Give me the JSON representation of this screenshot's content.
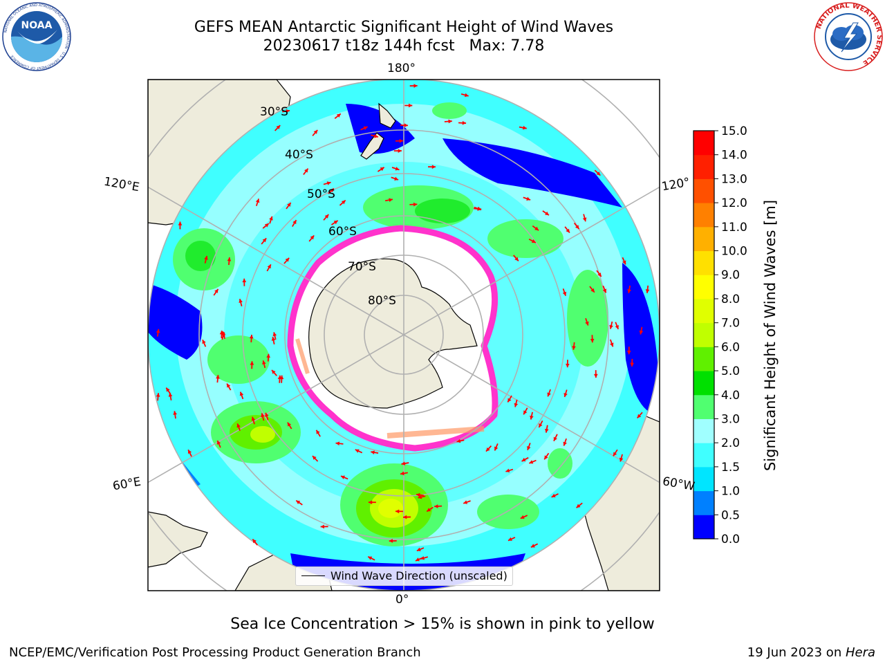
{
  "header": {
    "title_line1": "GEFS MEAN Antarctic Significant Height of Wind Waves",
    "title_line2": "20230617 t18z 144h fcst   Max: 7.78"
  },
  "logos": {
    "noaa_text": "NOAA",
    "noaa_ring_text": "NATIONAL OCEANIC AND ATMOSPHERIC ADMINISTRATION · U.S. DEPARTMENT OF COMMERCE",
    "nws_ring_text": "NATIONAL WEATHER SERVICE"
  },
  "map": {
    "lon_labels": {
      "top": "180°",
      "bottom": "0°",
      "upper_left": "120°E",
      "upper_right": "120°",
      "lower_left": "60°E",
      "lower_right": "60°W"
    },
    "lat_labels": [
      "30°S",
      "40°S",
      "50°S",
      "60°S",
      "70°S",
      "80°S"
    ],
    "legend_label": "Wind Wave Direction (unscaled)",
    "colors": {
      "land": "#eeecdc",
      "ocean_border": "#000000",
      "arrow": "#ff0000",
      "ice": "#ffffff",
      "ice_edge": "#ff33cc"
    }
  },
  "colorbar": {
    "title": "Significant Height of Wind Waves [m]",
    "ticks": [
      "0.0",
      "0.5",
      "1.0",
      "1.5",
      "2.0",
      "3.0",
      "4.0",
      "5.0",
      "6.0",
      "7.0",
      "8.0",
      "9.0",
      "10.0",
      "11.0",
      "12.0",
      "13.0",
      "14.0",
      "15.0"
    ],
    "colors": [
      "#0000ff",
      "#0080ff",
      "#00e5ff",
      "#40ffff",
      "#a0ffff",
      "#50ff70",
      "#00e000",
      "#60f000",
      "#c0ff00",
      "#e0ff00",
      "#ffff00",
      "#ffe000",
      "#ffb000",
      "#ff8000",
      "#ff5000",
      "#ff2000",
      "#ff0000"
    ]
  },
  "footer": {
    "note": "Sea Ice Concentration > 15% is shown in pink to yellow",
    "left": "NCEP/EMC/Verification Post Processing Product Generation Branch",
    "right_date": "19 Jun 2023 on ",
    "right_machine": "Hera"
  }
}
